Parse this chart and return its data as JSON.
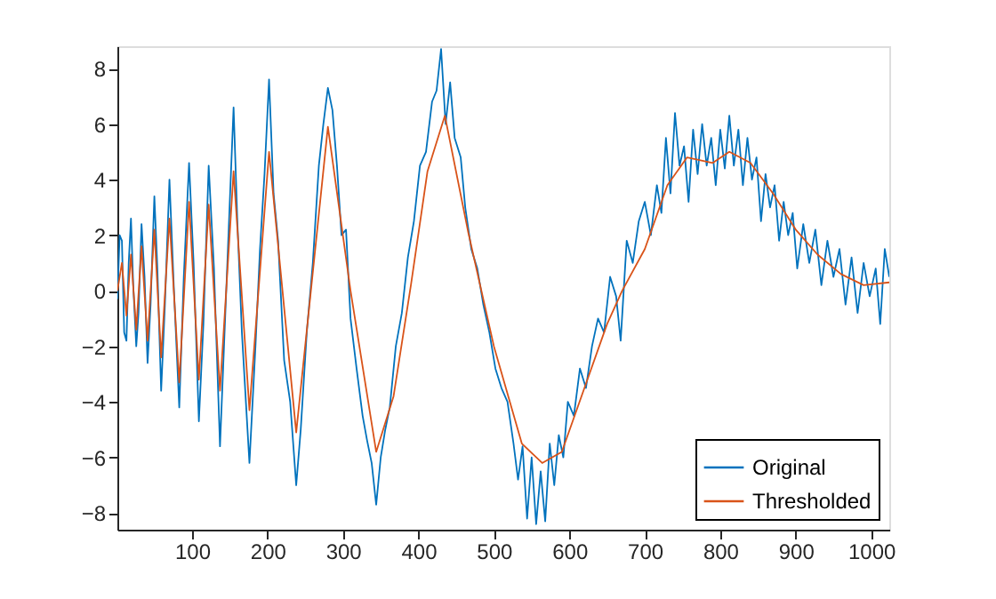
{
  "chart_data": {
    "type": "line",
    "xlim": [
      1,
      1024
    ],
    "ylim": [
      -8.6,
      8.8
    ],
    "xticks": [
      100,
      200,
      300,
      400,
      500,
      600,
      700,
      800,
      900,
      1000
    ],
    "yticks": [
      -8,
      -6,
      -4,
      -2,
      0,
      2,
      4,
      6,
      8
    ],
    "grid": false,
    "legend": "bottom right",
    "marker": "none",
    "line_style": "solid",
    "series": [
      {
        "name": "Original",
        "color": "#0072bd",
        "x": [
          1,
          4,
          7,
          10,
          13,
          16,
          19,
          22,
          26,
          29,
          33,
          37,
          41,
          45,
          50,
          54,
          59,
          64,
          70,
          76,
          83,
          89,
          96,
          102,
          109,
          115,
          122,
          129,
          137,
          146,
          155,
          160,
          166,
          176,
          184,
          190,
          196,
          202,
          208,
          214,
          222,
          230,
          238,
          244,
          252,
          260,
          268,
          274,
          280,
          286,
          292,
          298,
          304,
          310,
          318,
          326,
          332,
          338,
          344,
          350,
          356,
          362,
          370,
          378,
          386,
          394,
          402,
          410,
          418,
          424,
          430,
          436,
          442,
          448,
          456,
          462,
          470,
          478,
          486,
          494,
          502,
          510,
          518,
          526,
          532,
          538,
          544,
          550,
          556,
          562,
          568,
          574,
          580,
          586,
          592,
          598,
          606,
          614,
          622,
          630,
          638,
          646,
          654,
          662,
          668,
          676,
          684,
          692,
          700,
          708,
          716,
          722,
          728,
          734,
          740,
          746,
          752,
          758,
          764,
          770,
          776,
          782,
          788,
          794,
          800,
          806,
          812,
          818,
          824,
          830,
          836,
          842,
          848,
          854,
          860,
          866,
          872,
          878,
          884,
          890,
          896,
          902,
          910,
          918,
          926,
          934,
          942,
          950,
          958,
          966,
          974,
          982,
          990,
          998,
          1006,
          1012,
          1018,
          1024
        ],
        "values": [
          -0.3,
          2.0,
          1.8,
          -1.5,
          -1.8,
          1.0,
          2.6,
          0.2,
          -2.0,
          -0.8,
          2.4,
          0.5,
          -2.6,
          -0.5,
          3.4,
          0.8,
          -3.6,
          -0.5,
          4.0,
          0.0,
          -4.2,
          0.5,
          4.6,
          1.0,
          -4.7,
          -1.2,
          4.5,
          0.8,
          -5.6,
          0.5,
          6.6,
          2.5,
          -1.5,
          -6.2,
          -2.0,
          1.5,
          4.2,
          7.6,
          3.5,
          1.8,
          -2.5,
          -4.0,
          -7.0,
          -5.0,
          -1.5,
          1.0,
          4.5,
          6.0,
          7.3,
          6.5,
          4.5,
          2.0,
          2.2,
          -1.0,
          -2.8,
          -4.5,
          -5.4,
          -6.2,
          -7.7,
          -6.0,
          -5.0,
          -4.2,
          -2.0,
          -0.8,
          1.2,
          2.5,
          4.5,
          5.0,
          6.8,
          7.2,
          8.7,
          6.0,
          7.5,
          5.5,
          4.8,
          3.0,
          1.5,
          0.8,
          -0.5,
          -1.5,
          -2.8,
          -3.5,
          -4.0,
          -5.5,
          -6.8,
          -5.6,
          -8.2,
          -6.0,
          -8.4,
          -6.5,
          -8.3,
          -5.5,
          -7.0,
          -5.2,
          -6.0,
          -4.0,
          -4.5,
          -2.8,
          -3.5,
          -2.0,
          -1.0,
          -1.5,
          0.5,
          -0.2,
          -1.8,
          1.8,
          1.0,
          2.5,
          3.2,
          2.0,
          3.8,
          2.8,
          5.5,
          3.5,
          6.4,
          4.5,
          5.2,
          3.2,
          5.8,
          4.2,
          6.0,
          4.5,
          5.5,
          3.8,
          5.8,
          4.4,
          6.3,
          4.5,
          5.8,
          3.8,
          5.5,
          4.0,
          4.8,
          2.5,
          4.2,
          3.0,
          3.8,
          1.8,
          3.2,
          2.0,
          2.8,
          0.8,
          2.4,
          1.0,
          2.2,
          0.2,
          1.8,
          0.5,
          1.5,
          -0.5,
          1.2,
          -0.8,
          1.0,
          -0.2,
          0.8,
          -1.2,
          1.5,
          0.5
        ]
      },
      {
        "name": "Thresholded",
        "color": "#d95319",
        "x": [
          1,
          7,
          13,
          19,
          26,
          33,
          41,
          50,
          59,
          70,
          83,
          96,
          109,
          122,
          137,
          155,
          176,
          202,
          238,
          280,
          310,
          344,
          367,
          390,
          412,
          435,
          466,
          500,
          537,
          564,
          590,
          620,
          650,
          670,
          700,
          730,
          756,
          790,
          812,
          840,
          870,
          900,
          929,
          960,
          990,
          1024
        ],
        "values": [
          0,
          1.0,
          -0.9,
          1.3,
          -1.4,
          1.6,
          -1.8,
          2.2,
          -2.4,
          2.6,
          -3.3,
          3.2,
          -3.2,
          3.1,
          -3.6,
          4.3,
          -4.3,
          5.0,
          -5.1,
          5.9,
          0,
          -5.8,
          -3.8,
          0.2,
          4.3,
          6.3,
          2.1,
          -2.0,
          -5.5,
          -6.2,
          -5.8,
          -3.5,
          -1.2,
          0,
          1.5,
          3.8,
          4.8,
          4.6,
          5.0,
          4.6,
          3.5,
          2.2,
          1.3,
          0.6,
          0.2,
          0.3
        ]
      }
    ]
  }
}
